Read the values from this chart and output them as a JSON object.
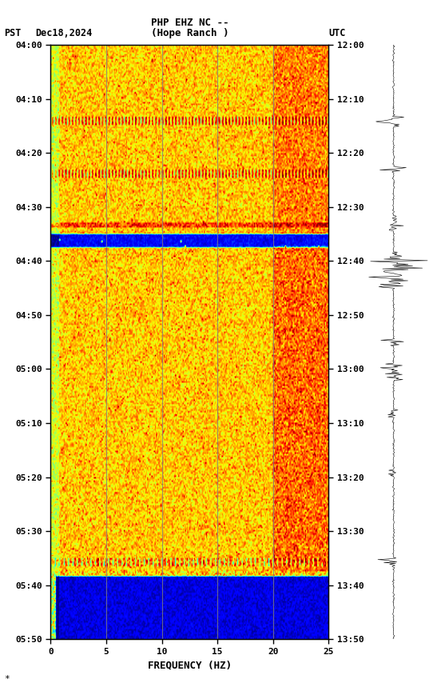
{
  "title_line1": "PHP EHZ NC --",
  "title_line2": "(Hope Ranch )",
  "label_left": "PST",
  "label_date": "Dec18,2024",
  "label_right": "UTC",
  "xlabel": "FREQUENCY (HZ)",
  "freq_min": 0,
  "freq_max": 25,
  "freq_ticks": [
    0,
    5,
    10,
    15,
    20,
    25
  ],
  "time_labels_left": [
    "04:00",
    "04:10",
    "04:20",
    "04:30",
    "04:40",
    "04:50",
    "05:00",
    "05:10",
    "05:20",
    "05:30",
    "05:40",
    "05:50"
  ],
  "time_labels_right": [
    "12:00",
    "12:10",
    "12:20",
    "12:30",
    "12:40",
    "12:50",
    "13:00",
    "13:10",
    "13:20",
    "13:30",
    "13:40",
    "13:50"
  ],
  "n_time": 360,
  "n_freq": 250,
  "vertical_line_freqs": [
    5.0,
    10.0,
    15.0,
    20.0
  ],
  "background_color": "#ffffff",
  "colormap": "jet",
  "seismogram_color": "#000000",
  "footnote": "*",
  "vmin": 0,
  "vmax": 1
}
